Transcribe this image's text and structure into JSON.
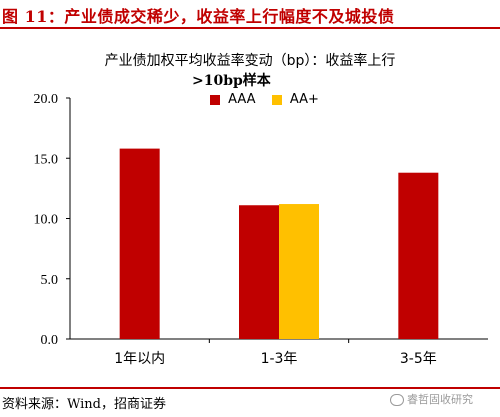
{
  "figure": {
    "title": "图 11：产业债成交稀少，收益率上行幅度不及城投债",
    "source": "资料来源：Wind，招商证券",
    "watermark": "睿哲固收研究"
  },
  "colors": {
    "accent": "#c00000",
    "AAA": "#c00000",
    "AA+": "#ffc000"
  },
  "chart_data": {
    "type": "bar",
    "title": "产业债加权平均收益率变动（bp）：收益率上行",
    "subtitle": ">10bp样本",
    "categories": [
      "1年以内",
      "1-3年",
      "3-5年"
    ],
    "series": [
      {
        "name": "AAA",
        "values": [
          15.8,
          11.1,
          13.8
        ]
      },
      {
        "name": "AA+",
        "values": [
          null,
          11.2,
          null
        ]
      }
    ],
    "yticks": [
      "0.0",
      "5.0",
      "10.0",
      "15.0",
      "20.0"
    ],
    "ylim": [
      0,
      20
    ],
    "xlabel": "",
    "ylabel": "",
    "grid": false,
    "legend_position": "top-center"
  }
}
